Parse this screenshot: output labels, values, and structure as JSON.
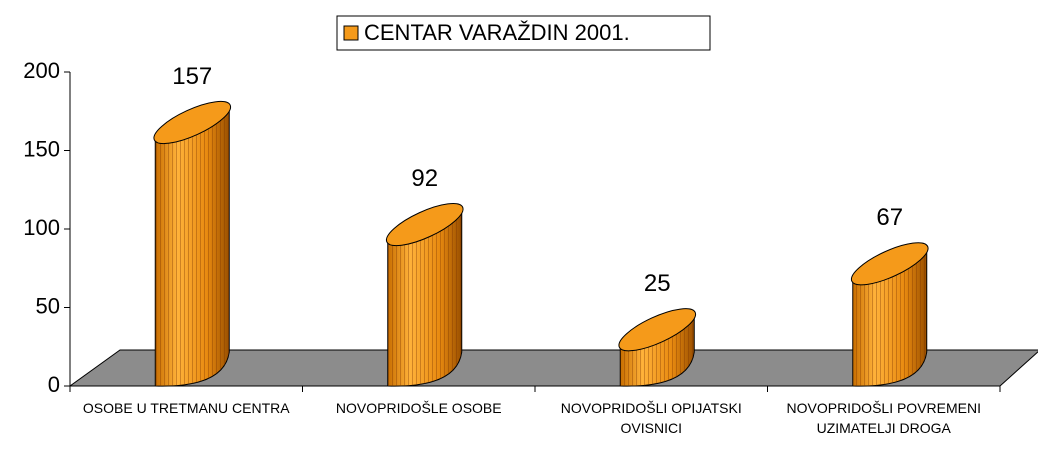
{
  "chart_data": {
    "type": "bar3d",
    "categories": [
      "OSOBE U TRETMANU CENTRA",
      "NOVOPRIDOŠLE OSOBE",
      "NOVOPRIDOŠLI OPIJATSKI OVISNICI",
      "NOVOPRIDOŠLI POVREMENI UZIMATELJI DROGA"
    ],
    "series": [
      {
        "name": "CENTAR VARAŽDIN 2001.",
        "color": "#f59a1a",
        "values": [
          157,
          92,
          25,
          67
        ]
      }
    ],
    "ylim": [
      0,
      200
    ],
    "yticks": [
      0,
      50,
      100,
      150,
      200
    ],
    "grid": false,
    "legend": "top"
  }
}
